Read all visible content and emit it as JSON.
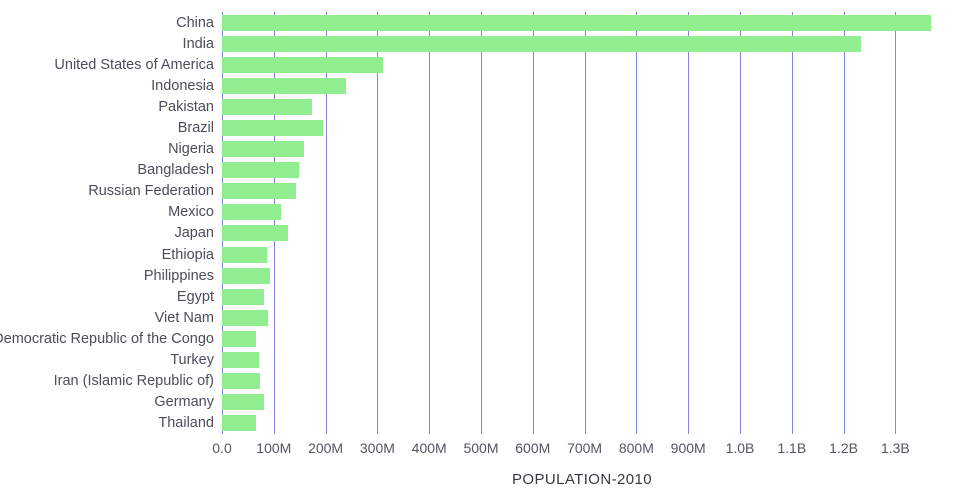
{
  "chart_data": {
    "type": "bar",
    "orientation": "horizontal",
    "title": "",
    "xlabel": "POPULATION-2010",
    "ylabel": "",
    "xlim": [
      0,
      1390000000
    ],
    "grid": true,
    "legend": false,
    "bar_color": "#90ee90",
    "grid_color": "#8484dd",
    "categories": [
      "China",
      "India",
      "United States of America",
      "Indonesia",
      "Pakistan",
      "Brazil",
      "Nigeria",
      "Bangladesh",
      "Russian Federation",
      "Mexico",
      "Japan",
      "Ethiopia",
      "Philippines",
      "Egypt",
      "Viet Nam",
      "Democratic Republic of the Congo",
      "Turkey",
      "Iran (Islamic Republic of)",
      "Germany",
      "Thailand"
    ],
    "values": [
      1369000000,
      1234000000,
      310000000,
      240000000,
      174000000,
      195000000,
      158000000,
      148000000,
      143000000,
      114000000,
      128000000,
      87000000,
      93000000,
      81000000,
      88000000,
      66000000,
      72000000,
      74000000,
      82000000,
      66000000
    ],
    "ticks": [
      {
        "value": 0,
        "label": "0.0"
      },
      {
        "value": 100000000,
        "label": "100M"
      },
      {
        "value": 200000000,
        "label": "200M"
      },
      {
        "value": 300000000,
        "label": "300M"
      },
      {
        "value": 400000000,
        "label": "400M"
      },
      {
        "value": 500000000,
        "label": "500M"
      },
      {
        "value": 600000000,
        "label": "600M"
      },
      {
        "value": 700000000,
        "label": "700M"
      },
      {
        "value": 800000000,
        "label": "800M"
      },
      {
        "value": 900000000,
        "label": "900M"
      },
      {
        "value": 1000000000,
        "label": "1.0B"
      },
      {
        "value": 1100000000,
        "label": "1.1B"
      },
      {
        "value": 1200000000,
        "label": "1.2B"
      },
      {
        "value": 1300000000,
        "label": "1.3B"
      }
    ]
  }
}
